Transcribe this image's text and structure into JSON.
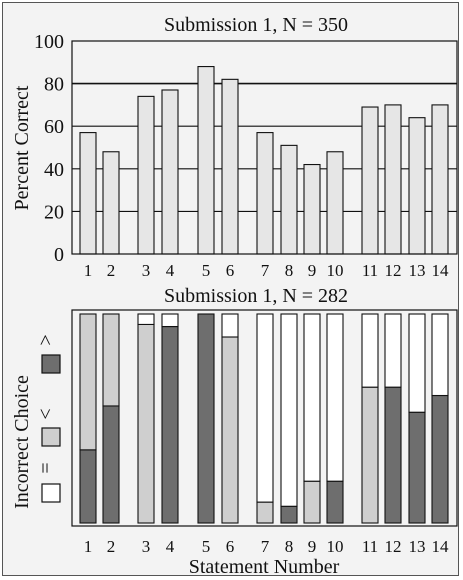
{
  "chart_data": [
    {
      "type": "bar",
      "title": "Submission 1, N = 350",
      "xlabel": "",
      "ylabel": "Percent Correct",
      "ylim": [
        0,
        100
      ],
      "yticks": [
        "0",
        "20",
        "40",
        "60",
        "80",
        "100"
      ],
      "grid": true,
      "categories": [
        "1",
        "2",
        "3",
        "4",
        "5",
        "6",
        "7",
        "8",
        "9",
        "10",
        "11",
        "12",
        "13",
        "14"
      ],
      "values": [
        57,
        48,
        74,
        77,
        88,
        82,
        57,
        51,
        42,
        48,
        69,
        70,
        64,
        70
      ],
      "bar_color": "#e6e6e6"
    },
    {
      "type": "bar",
      "stacked": true,
      "title": "Submission 1, N = 282",
      "xlabel": "Statement Number",
      "ylabel": "Incorrect Choice",
      "ylim": [
        0,
        100
      ],
      "categories": [
        "1",
        "2",
        "3",
        "4",
        "5",
        "6",
        "7",
        "8",
        "9",
        "10",
        "11",
        "12",
        "13",
        "14"
      ],
      "legend": [
        {
          "label": "=",
          "color": "#ffffff"
        },
        {
          "label": "<",
          "color": "#cfcfcf"
        },
        {
          "label": ">",
          "color": "#6e6e6e"
        }
      ],
      "series": [
        {
          "values": [
            35,
            56,
            0,
            94,
            100,
            0,
            0,
            8,
            0,
            20,
            0,
            65,
            53,
            61
          ],
          "color": "#6e6e6e"
        },
        {
          "values": [
            65,
            44,
            95,
            0,
            0,
            89,
            10,
            0,
            20,
            0,
            65,
            0,
            0,
            0
          ],
          "color": "#cfcfcf"
        },
        {
          "values": [
            0,
            0,
            5,
            6,
            0,
            11,
            90,
            92,
            80,
            80,
            35,
            35,
            47,
            39
          ],
          "color": "#ffffff"
        }
      ]
    }
  ]
}
